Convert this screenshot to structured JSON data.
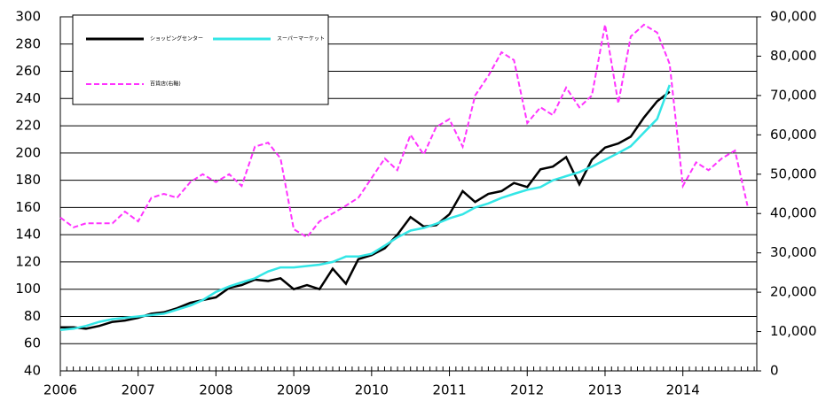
{
  "chart_data": {
    "type": "line",
    "x": [
      2006,
      2006.17,
      2006.33,
      2006.5,
      2006.67,
      2006.83,
      2007,
      2007.17,
      2007.33,
      2007.5,
      2007.67,
      2007.83,
      2008,
      2008.17,
      2008.33,
      2008.5,
      2008.67,
      2008.83,
      2009,
      2009.17,
      2009.33,
      2009.5,
      2009.67,
      2009.83,
      2010,
      2010.17,
      2010.33,
      2010.5,
      2010.67,
      2010.83,
      2011,
      2011.17,
      2011.33,
      2011.5,
      2011.67,
      2011.83,
      2012,
      2012.17,
      2012.33,
      2012.5,
      2012.67,
      2012.83,
      2013,
      2013.17,
      2013.33,
      2013.5,
      2013.67,
      2013.83,
      2014,
      2014.17,
      2014.33,
      2014.5,
      2014.67,
      2014.83
    ],
    "series": [
      {
        "name": "ショッピングセンター",
        "color": "#000000",
        "values": [
          72,
          72,
          71,
          73,
          76,
          77,
          79,
          82,
          83,
          86,
          90,
          92,
          94,
          101,
          103,
          107,
          106,
          108,
          100,
          103,
          100,
          115,
          104,
          122,
          125,
          130,
          140,
          153,
          146,
          147,
          155,
          172,
          164,
          170,
          172,
          178,
          175,
          188,
          190,
          197,
          177,
          195,
          204,
          207,
          212,
          226,
          238,
          245,
          null,
          null,
          null,
          null,
          null,
          null
        ]
      },
      {
        "name": "スーパーマーケット",
        "color": "#33e6e6",
        "values": [
          70,
          71,
          73,
          76,
          78,
          79,
          80,
          81,
          82,
          85,
          88,
          92,
          98,
          102,
          105,
          108,
          113,
          116,
          116,
          117,
          118,
          120,
          124,
          124,
          126,
          132,
          138,
          143,
          145,
          148,
          152,
          155,
          160,
          163,
          167,
          170,
          173,
          175,
          180,
          183,
          186,
          190,
          195,
          200,
          205,
          215,
          225,
          250,
          null,
          null,
          null,
          null,
          null,
          null
        ]
      },
      {
        "name": "百貨店(右軸)",
        "color": "#ff33ff",
        "axis": "y2",
        "dashed": true,
        "values": [
          39000,
          36500,
          37500,
          37500,
          37500,
          40500,
          38000,
          44000,
          45000,
          44000,
          48000,
          50000,
          48000,
          50000,
          47000,
          57000,
          58000,
          54000,
          36000,
          34000,
          38000,
          40000,
          42000,
          44000,
          49000,
          54000,
          51000,
          60000,
          55000,
          62000,
          64000,
          57000,
          70000,
          75000,
          81000,
          79000,
          63000,
          67000,
          65000,
          72000,
          67000,
          70000,
          88000,
          68000,
          85000,
          88000,
          86000,
          78000,
          47000,
          53000,
          51000,
          54000,
          56000,
          42000
        ]
      }
    ],
    "xlim": [
      2006,
      2014.95
    ],
    "xticks": [
      2006,
      2007,
      2008,
      2009,
      2010,
      2011,
      2012,
      2013,
      2014
    ],
    "ylim": [
      40,
      300
    ],
    "yticks": [
      40,
      60,
      80,
      100,
      120,
      140,
      160,
      180,
      200,
      220,
      240,
      260,
      280,
      300
    ],
    "y2lim": [
      0,
      90000
    ],
    "y2ticks": [
      0,
      {
        "value": 10000,
        "label": "10,000"
      },
      {
        "value": 20000,
        "label": "20,000"
      },
      {
        "value": 30000,
        "label": "30,000"
      },
      {
        "value": 40000,
        "label": "40,000"
      },
      {
        "value": 50000,
        "label": "50,000"
      },
      {
        "value": 60000,
        "label": "60,000"
      },
      {
        "value": 70000,
        "label": "70,000"
      },
      {
        "value": 80000,
        "label": "80,000"
      },
      {
        "value": 90000,
        "label": "90,000"
      }
    ],
    "grid": true
  }
}
